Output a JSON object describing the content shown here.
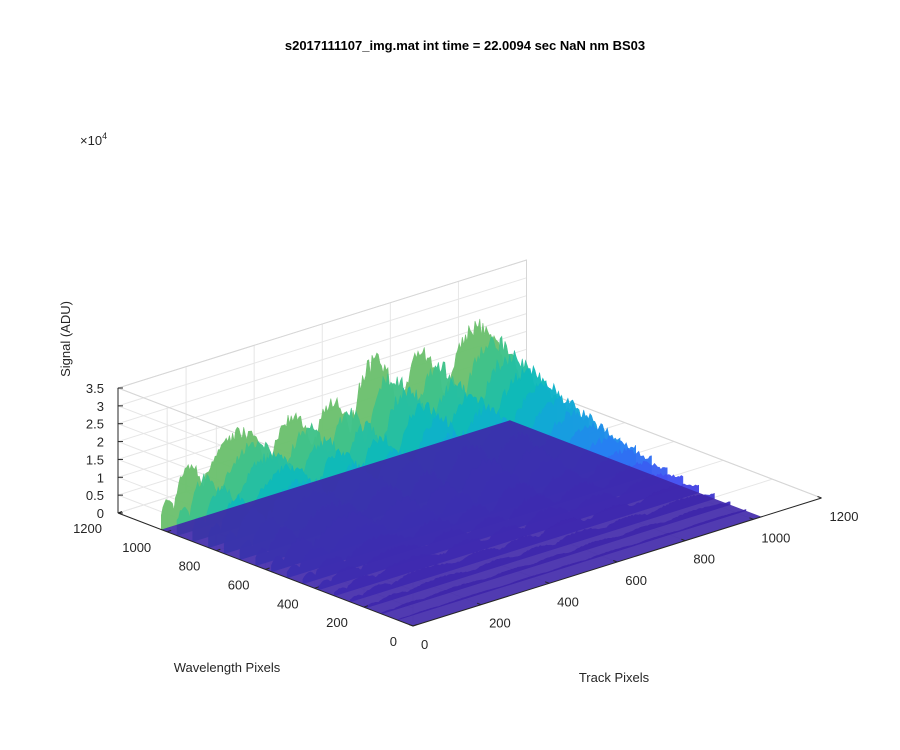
{
  "chart_data": {
    "type": "surface",
    "title": "s2017111107_img.mat int time = 22.0094 sec  NaN nm BS03",
    "xlabel": "Track Pixels",
    "ylabel": "Wavelength Pixels",
    "zlabel": "Signal (ADU)",
    "xlim": [
      0,
      1200
    ],
    "ylim": [
      0,
      1200
    ],
    "zlim": [
      0,
      35000
    ],
    "x_ticks": [
      "0",
      "200",
      "400",
      "600",
      "800",
      "1000",
      "1200"
    ],
    "y_ticks": [
      "0",
      "200",
      "400",
      "600",
      "800",
      "1000",
      "1200"
    ],
    "z_ticks": [
      "0",
      "0.5",
      "1",
      "1.5",
      "2",
      "2.5",
      "3",
      "3.5"
    ],
    "z_exponent_label": "×10",
    "z_exponent_power": "4",
    "grid": true,
    "colormap": "parula",
    "data_extent": {
      "x": [
        0,
        1024
      ],
      "y": [
        1,
        1024
      ]
    },
    "peaks_along_track": [
      {
        "track_start": 0,
        "track_end": 40,
        "peak_signal": 8000
      },
      {
        "track_start": 40,
        "track_end": 130,
        "peak_signal": 15000
      },
      {
        "track_start": 130,
        "track_end": 320,
        "peak_signal": 20500
      },
      {
        "track_start": 320,
        "track_end": 450,
        "peak_signal": 20000
      },
      {
        "track_start": 450,
        "track_end": 560,
        "peak_signal": 21000
      },
      {
        "track_start": 560,
        "track_end": 700,
        "peak_signal": 28000
      },
      {
        "track_start": 700,
        "track_end": 840,
        "peak_signal": 26000
      },
      {
        "track_start": 840,
        "track_end": 1024,
        "peak_signal": 28500
      }
    ],
    "wavelength_rolloff": "signal is highest near wavelength pixel 1000 and falls toward 0 at wavelength pixel 0"
  }
}
